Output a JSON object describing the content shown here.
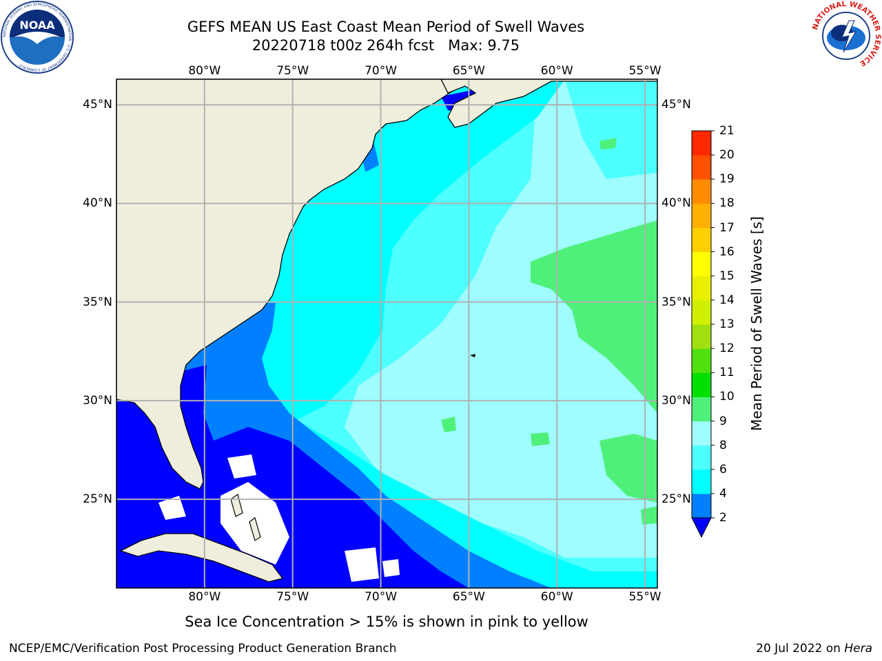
{
  "title": "GEFS MEAN US East Coast Mean Period of Swell Waves",
  "subtitle": "20220718 t00z 264h fcst   Max: 9.75",
  "map": {
    "lon_ticks": [
      "80°W",
      "75°W",
      "70°W",
      "65°W",
      "60°W",
      "55°W"
    ],
    "lat_ticks": [
      "45°N",
      "40°N",
      "35°N",
      "30°N",
      "25°N"
    ],
    "lon_values": [
      -80,
      -75,
      -70,
      -65,
      -60,
      -55
    ],
    "lat_values": [
      45,
      40,
      35,
      30,
      25
    ],
    "lon_range": [
      -85,
      -54.3
    ],
    "lat_range": [
      20.5,
      46.3
    ],
    "colors": {
      "land": "#efeedd",
      "grid": "#b0b0b0",
      "coast": "#000000",
      "no_data": "#ffffff"
    },
    "regions": [
      {
        "band": "2-4",
        "color": "#0000ff",
        "where": "Bahamas, Caribbean, Florida Straits, south US coast"
      },
      {
        "band": "4-6",
        "color": "#0080ff",
        "where": "Southeast US shelf, south of 30N"
      },
      {
        "band": "6-8",
        "color": "#00ffff",
        "where": "central western Atlantic"
      },
      {
        "band": "8-9",
        "color": "#9ffcff",
        "where": "open ocean east of 70W"
      },
      {
        "band": "9-10",
        "color": "#4ff07a",
        "where": "patches east of 62W"
      }
    ]
  },
  "colorbar": {
    "label": "Mean Period of Swell Waves [s]",
    "ticks": [
      "2",
      "4",
      "6",
      "8",
      "9",
      "10",
      "11",
      "12",
      "13",
      "14",
      "15",
      "16",
      "17",
      "18",
      "19",
      "20",
      "21"
    ],
    "colors": [
      "#0000ff",
      "#0080ff",
      "#00ffff",
      "#4dffff",
      "#9ffcff",
      "#4ff07a",
      "#00e000",
      "#50e010",
      "#a0e010",
      "#d0f000",
      "#e8f000",
      "#ffff00",
      "#ffd000",
      "#ffb000",
      "#ff8c00",
      "#ff5000",
      "#ff2800",
      "#ff0000"
    ]
  },
  "note": "Sea Ice Concentration > 15% is shown in pink to yellow",
  "footer": {
    "left": "NCEP/EMC/Verification Post Processing Product Generation Branch",
    "date": "20 Jul 2022 on ",
    "machine": "Hera"
  },
  "logos": {
    "noaa_text": "NOAA",
    "noaa_ring": "NATIONAL OCEANIC AND ATMOSPHERIC ADMINISTRATION · U.S. DEPARTMENT OF COMMERCE",
    "nws_ring": "NATIONAL WEATHER SERVICE"
  }
}
